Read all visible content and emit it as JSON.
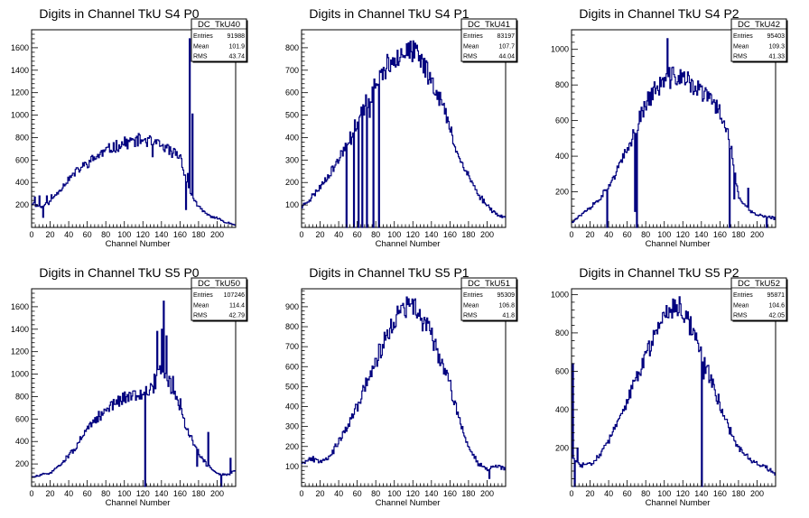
{
  "chart_data": [
    {
      "type": "histogram",
      "title": "Digits in Channel TkU S4 P0",
      "xlabel": "Channel Number",
      "xlim": [
        0,
        220
      ],
      "ylim": [
        0,
        1760
      ],
      "xticks": [
        0,
        20,
        40,
        60,
        80,
        100,
        120,
        140,
        160,
        180,
        200
      ],
      "yticks": [
        200,
        400,
        600,
        800,
        1000,
        1200,
        1400,
        1600
      ],
      "stats": {
        "name": "DC_TkU40",
        "entries_label": "Entries",
        "entries": "91988",
        "mean_label": "Mean",
        "mean": "101.9",
        "rms_label": "RMS",
        "rms": "43.74"
      },
      "anchors": [
        [
          0,
          220
        ],
        [
          10,
          180
        ],
        [
          20,
          230
        ],
        [
          30,
          330
        ],
        [
          40,
          430
        ],
        [
          50,
          510
        ],
        [
          60,
          570
        ],
        [
          70,
          630
        ],
        [
          80,
          680
        ],
        [
          90,
          720
        ],
        [
          100,
          750
        ],
        [
          110,
          770
        ],
        [
          120,
          780
        ],
        [
          130,
          760
        ],
        [
          140,
          720
        ],
        [
          150,
          680
        ],
        [
          160,
          640
        ],
        [
          170,
          330
        ],
        [
          180,
          180
        ],
        [
          190,
          110
        ],
        [
          200,
          80
        ],
        [
          210,
          45
        ],
        [
          220,
          25
        ]
      ],
      "spikes": [
        [
          3,
          270
        ],
        [
          8,
          280
        ],
        [
          12,
          90
        ],
        [
          16,
          280
        ],
        [
          21,
          290
        ],
        [
          25,
          290
        ],
        [
          130,
          630
        ],
        [
          148,
          650
        ],
        [
          166,
          160
        ],
        [
          168,
          480
        ],
        [
          170,
          1680
        ],
        [
          173,
          1010
        ]
      ],
      "seed": 11
    },
    {
      "type": "histogram",
      "title": "Digits in Channel TkU S4 P1",
      "xlabel": "Channel Number",
      "xlim": [
        0,
        220
      ],
      "ylim": [
        0,
        880
      ],
      "xticks": [
        0,
        20,
        40,
        60,
        80,
        100,
        120,
        140,
        160,
        180,
        200
      ],
      "yticks": [
        100,
        200,
        300,
        400,
        500,
        600,
        700,
        800
      ],
      "stats": {
        "name": "DC_TkU41",
        "entries_label": "Entries",
        "entries": "83197",
        "mean_label": "Mean",
        "mean": "107.7",
        "rms_label": "RMS",
        "rms": "44.04"
      },
      "anchors": [
        [
          0,
          90
        ],
        [
          10,
          130
        ],
        [
          20,
          180
        ],
        [
          30,
          240
        ],
        [
          40,
          300
        ],
        [
          50,
          390
        ],
        [
          60,
          470
        ],
        [
          70,
          560
        ],
        [
          80,
          630
        ],
        [
          90,
          700
        ],
        [
          100,
          760
        ],
        [
          110,
          790
        ],
        [
          120,
          780
        ],
        [
          130,
          740
        ],
        [
          140,
          660
        ],
        [
          150,
          570
        ],
        [
          160,
          440
        ],
        [
          170,
          310
        ],
        [
          180,
          230
        ],
        [
          190,
          150
        ],
        [
          200,
          100
        ],
        [
          210,
          60
        ],
        [
          220,
          40
        ]
      ],
      "spikes": [
        [
          48,
          0
        ],
        [
          53,
          370
        ],
        [
          56,
          0
        ],
        [
          58,
          430
        ],
        [
          61,
          0
        ],
        [
          63,
          500
        ],
        [
          65,
          0
        ],
        [
          67,
          500
        ],
        [
          70,
          0
        ],
        [
          73,
          490
        ],
        [
          77,
          0
        ],
        [
          79,
          620
        ],
        [
          83,
          0
        ],
        [
          85,
          690
        ]
      ],
      "seed": 23
    },
    {
      "type": "histogram",
      "title": "Digits in Channel TkU S4 P2",
      "xlabel": "Channel Number",
      "xlim": [
        0,
        220
      ],
      "ylim": [
        0,
        1110
      ],
      "xticks": [
        0,
        20,
        40,
        60,
        80,
        100,
        120,
        140,
        160,
        180,
        200
      ],
      "yticks": [
        200,
        400,
        600,
        800,
        1000
      ],
      "stats": {
        "name": "DC_TkU42",
        "entries_label": "Entries",
        "entries": "95403",
        "mean_label": "Mean",
        "mean": "109.3",
        "rms_label": "RMS",
        "rms": "41.33"
      },
      "anchors": [
        [
          0,
          30
        ],
        [
          10,
          70
        ],
        [
          20,
          110
        ],
        [
          30,
          160
        ],
        [
          40,
          230
        ],
        [
          50,
          330
        ],
        [
          60,
          430
        ],
        [
          70,
          570
        ],
        [
          80,
          700
        ],
        [
          90,
          770
        ],
        [
          100,
          820
        ],
        [
          110,
          850
        ],
        [
          120,
          840
        ],
        [
          130,
          800
        ],
        [
          140,
          760
        ],
        [
          150,
          720
        ],
        [
          160,
          650
        ],
        [
          170,
          520
        ],
        [
          180,
          170
        ],
        [
          190,
          100
        ],
        [
          200,
          70
        ],
        [
          210,
          60
        ],
        [
          220,
          50
        ]
      ],
      "spikes": [
        [
          38,
          0
        ],
        [
          40,
          240
        ],
        [
          68,
          90
        ],
        [
          70,
          0
        ],
        [
          103,
          1060
        ],
        [
          170,
          0
        ],
        [
          175,
          160
        ],
        [
          190,
          220
        ],
        [
          210,
          0
        ]
      ],
      "seed": 37
    },
    {
      "type": "histogram",
      "title": "Digits in Channel TkU S5 P0",
      "xlabel": "Channel Number",
      "xlim": [
        0,
        220
      ],
      "ylim": [
        0,
        1760
      ],
      "xticks": [
        0,
        20,
        40,
        60,
        80,
        100,
        120,
        140,
        160,
        180,
        200
      ],
      "yticks": [
        200,
        400,
        600,
        800,
        1000,
        1200,
        1400,
        1600
      ],
      "stats": {
        "name": "DC_TkU50",
        "entries_label": "Entries",
        "entries": "107246",
        "mean_label": "Mean",
        "mean": "114.4",
        "rms_label": "RMS",
        "rms": "42.79"
      },
      "anchors": [
        [
          0,
          80
        ],
        [
          10,
          100
        ],
        [
          20,
          120
        ],
        [
          30,
          190
        ],
        [
          40,
          270
        ],
        [
          50,
          380
        ],
        [
          60,
          500
        ],
        [
          70,
          600
        ],
        [
          80,
          680
        ],
        [
          90,
          740
        ],
        [
          100,
          790
        ],
        [
          110,
          820
        ],
        [
          120,
          840
        ],
        [
          130,
          860
        ],
        [
          140,
          1050
        ],
        [
          150,
          900
        ],
        [
          160,
          700
        ],
        [
          170,
          450
        ],
        [
          180,
          300
        ],
        [
          190,
          180
        ],
        [
          200,
          120
        ],
        [
          210,
          100
        ],
        [
          220,
          140
        ]
      ],
      "spikes": [
        [
          122,
          0
        ],
        [
          124,
          820
        ],
        [
          132,
          1000
        ],
        [
          135,
          1380
        ],
        [
          140,
          1400
        ],
        [
          142,
          1650
        ],
        [
          145,
          1340
        ],
        [
          152,
          980
        ],
        [
          160,
          780
        ],
        [
          172,
          450
        ],
        [
          178,
          180
        ],
        [
          190,
          480
        ],
        [
          204,
          0
        ],
        [
          214,
          250
        ]
      ],
      "seed": 51
    },
    {
      "type": "histogram",
      "title": "Digits in Channel TkU S5 P1",
      "xlabel": "Channel Number",
      "xlim": [
        0,
        220
      ],
      "ylim": [
        0,
        990
      ],
      "xticks": [
        0,
        20,
        40,
        60,
        80,
        100,
        120,
        140,
        160,
        180,
        200
      ],
      "yticks": [
        100,
        200,
        300,
        400,
        500,
        600,
        700,
        800,
        900
      ],
      "stats": {
        "name": "DC_TkU51",
        "entries_label": "Entries",
        "entries": "95309",
        "mean_label": "Mean",
        "mean": "106.8",
        "rms_label": "RMS",
        "rms": "41.8"
      },
      "anchors": [
        [
          0,
          120
        ],
        [
          10,
          140
        ],
        [
          20,
          130
        ],
        [
          30,
          150
        ],
        [
          40,
          220
        ],
        [
          50,
          300
        ],
        [
          60,
          400
        ],
        [
          70,
          520
        ],
        [
          80,
          630
        ],
        [
          90,
          730
        ],
        [
          100,
          830
        ],
        [
          110,
          890
        ],
        [
          120,
          900
        ],
        [
          130,
          840
        ],
        [
          140,
          760
        ],
        [
          150,
          640
        ],
        [
          160,
          500
        ],
        [
          170,
          340
        ],
        [
          180,
          200
        ],
        [
          190,
          120
        ],
        [
          200,
          90
        ],
        [
          210,
          100
        ],
        [
          220,
          90
        ]
      ],
      "spikes": [
        [
          115,
          940
        ],
        [
          202,
          40
        ]
      ],
      "seed": 67
    },
    {
      "type": "histogram",
      "title": "Digits in Channel TkU S5 P2",
      "xlabel": "Channel Number",
      "xlim": [
        0,
        220
      ],
      "ylim": [
        0,
        1030
      ],
      "xticks": [
        0,
        20,
        40,
        60,
        80,
        100,
        120,
        140,
        160,
        180,
        200
      ],
      "yticks": [
        200,
        400,
        600,
        800,
        1000
      ],
      "stats": {
        "name": "DC_TkU52",
        "entries_label": "Entries",
        "entries": "95871",
        "mean_label": "Mean",
        "mean": "104.6",
        "rms_label": "RMS",
        "rms": "42.05"
      },
      "anchors": [
        [
          0,
          150
        ],
        [
          10,
          110
        ],
        [
          20,
          120
        ],
        [
          30,
          160
        ],
        [
          40,
          240
        ],
        [
          50,
          330
        ],
        [
          60,
          440
        ],
        [
          70,
          560
        ],
        [
          80,
          680
        ],
        [
          90,
          800
        ],
        [
          100,
          900
        ],
        [
          110,
          950
        ],
        [
          120,
          920
        ],
        [
          130,
          830
        ],
        [
          140,
          700
        ],
        [
          150,
          560
        ],
        [
          160,
          430
        ],
        [
          170,
          300
        ],
        [
          180,
          200
        ],
        [
          190,
          150
        ],
        [
          200,
          120
        ],
        [
          210,
          100
        ],
        [
          220,
          60
        ]
      ],
      "spikes": [
        [
          1,
          640
        ],
        [
          3,
          0
        ],
        [
          6,
          200
        ],
        [
          140,
          0
        ],
        [
          142,
          560
        ]
      ],
      "seed": 83
    }
  ]
}
